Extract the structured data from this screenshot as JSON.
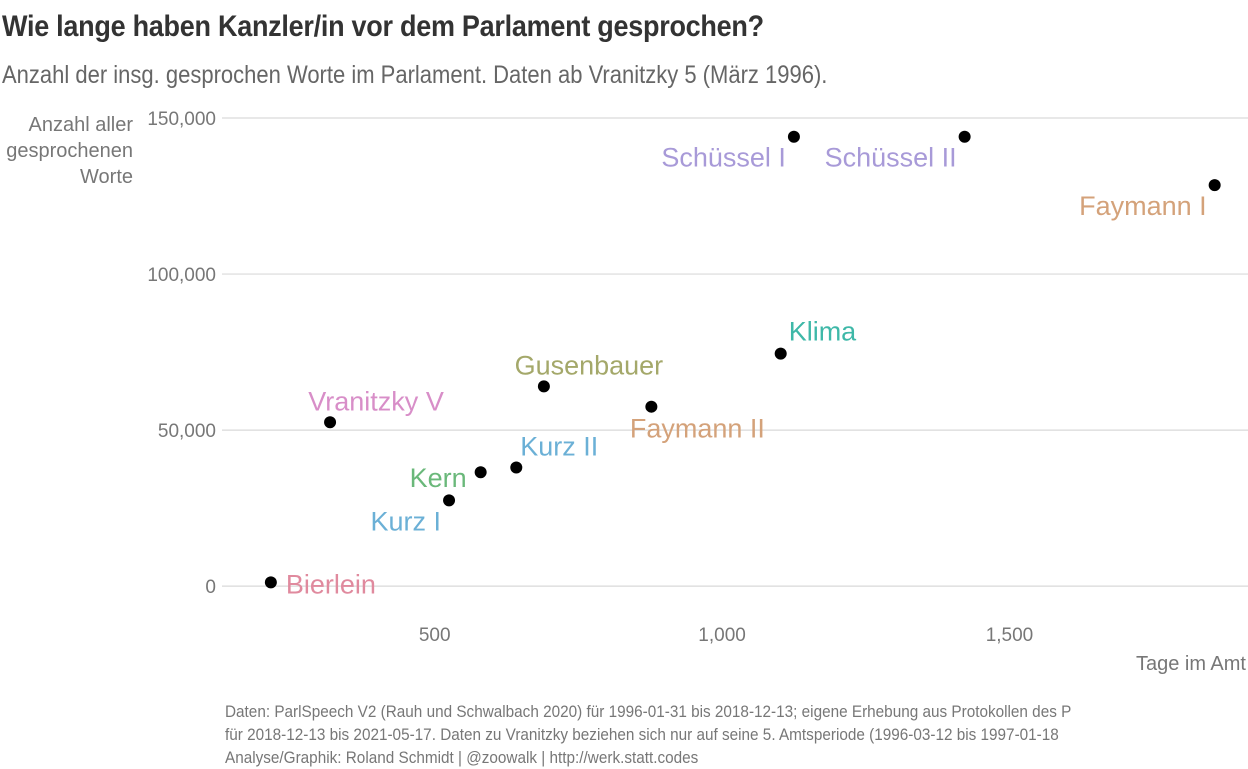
{
  "title": "Wie lange haben Kanzler/in vor dem Parlament gesprochen?",
  "subtitle": "Anzahl der insg. gesprochen Worte im Parlament. Daten ab Vranitzky 5 (März 1996).",
  "caption": [
    "Daten: ParlSpeech V2 (Rauh und Schwalbach 2020) für 1996-01-31 bis 2018-12-13; eigene Erhebung aus Protokollen des P",
    "für 2018-12-13 bis 2021-05-17. Daten zu Vranitzky beziehen sich nur auf seine 5. Amtsperiode (1996-03-12 bis 1997-01-18",
    "Analyse/Graphik: Roland Schmidt | @zoowalk | http://werk.statt.codes"
  ],
  "chart_data": {
    "type": "scatter",
    "xlabel": "Tage im Amt",
    "ylabel_lines": [
      "Anzahl aller",
      "gesprochenen",
      "Worte"
    ],
    "xlim": [
      130,
      1915
    ],
    "ylim": [
      -7000,
      150000
    ],
    "x_ticks": [
      500,
      1000,
      1500
    ],
    "x_tick_labels": [
      "500",
      "1,000",
      "1,500"
    ],
    "y_ticks": [
      0,
      50000,
      100000,
      150000
    ],
    "y_tick_labels": [
      "0",
      "50,000",
      "100,000",
      "150,000"
    ],
    "grid": "horizontal",
    "points": [
      {
        "label": "Bierlein",
        "x": 215,
        "y": 1200,
        "color": "#e08a9e",
        "label_pos": "right"
      },
      {
        "label": "Vranitzky V",
        "x": 318,
        "y": 52500,
        "color": "#d88ec8",
        "label_pos": "above"
      },
      {
        "label": "Kurz I",
        "x": 525,
        "y": 27500,
        "color": "#6bb0d6",
        "label_pos": "below-left"
      },
      {
        "label": "Kern",
        "x": 580,
        "y": 36500,
        "color": "#6ab87a",
        "label_pos": "left"
      },
      {
        "label": "Kurz II",
        "x": 642,
        "y": 38000,
        "color": "#6bb0d6",
        "label_pos": "above-right"
      },
      {
        "label": "Gusenbauer",
        "x": 690,
        "y": 64000,
        "color": "#a4a86a",
        "label_pos": "above"
      },
      {
        "label": "Faymann II",
        "x": 877,
        "y": 57500,
        "color": "#d4a27a",
        "label_pos": "below"
      },
      {
        "label": "Klima",
        "x": 1102,
        "y": 74500,
        "color": "#3eb8a8",
        "label_pos": "above-right"
      },
      {
        "label": "Schüssel I",
        "x": 1125,
        "y": 144000,
        "color": "#a89ad8",
        "label_pos": "below-left"
      },
      {
        "label": "Schüssel II",
        "x": 1422,
        "y": 144000,
        "color": "#a89ad8",
        "label_pos": "below-left"
      },
      {
        "label": "Faymann I",
        "x": 1857,
        "y": 128500,
        "color": "#d4a27a",
        "label_pos": "below-left"
      }
    ]
  }
}
